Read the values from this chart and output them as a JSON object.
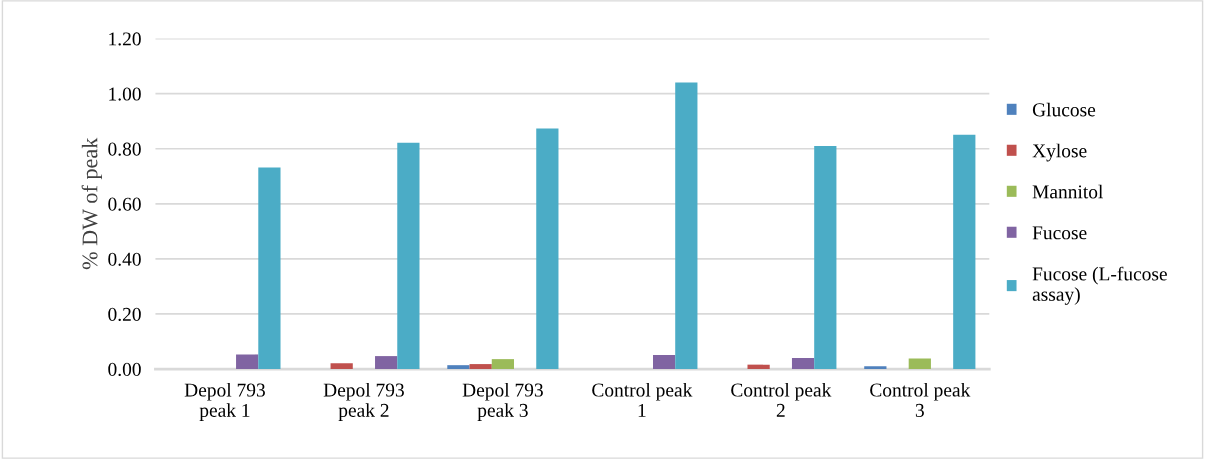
{
  "chart_data": {
    "type": "bar",
    "ylabel": "% DW of peak",
    "categories": [
      "Depol 793\npeak 1",
      "Depol 793\npeak 2",
      "Depol 793\npeak 3",
      "Control peak\n1",
      "Control peak\n2",
      "Control peak\n3"
    ],
    "series": [
      {
        "name": "Glucose",
        "color": "#4f81bd",
        "values": [
          null,
          null,
          0.014,
          null,
          null,
          0.01
        ]
      },
      {
        "name": "Xylose",
        "color": "#c0504d",
        "values": [
          null,
          0.021,
          0.018,
          null,
          0.016,
          null
        ]
      },
      {
        "name": "Mannitol",
        "color": "#9bbb59",
        "values": [
          null,
          null,
          0.036,
          null,
          null,
          0.038
        ]
      },
      {
        "name": "Fucose",
        "color": "#8064a2",
        "values": [
          0.053,
          0.047,
          null,
          0.051,
          0.04,
          null
        ]
      },
      {
        "name": "Fucose (L-fucose\nassay)",
        "color": "#4bacc6",
        "values": [
          0.732,
          0.822,
          0.873,
          1.04,
          0.81,
          0.851
        ]
      }
    ],
    "ylim": [
      0,
      1.2
    ],
    "yticks": [
      {
        "value": 0,
        "label": "0.00"
      },
      {
        "value": 0.2,
        "label": "0.20"
      },
      {
        "value": 0.4,
        "label": "0.40"
      },
      {
        "value": 0.6,
        "label": "0.60"
      },
      {
        "value": 0.8,
        "label": "0.80"
      },
      {
        "value": 1.0,
        "label": "1.00"
      },
      {
        "value": 1.2,
        "label": "1.20"
      }
    ],
    "grid": "y",
    "legend": "right"
  }
}
